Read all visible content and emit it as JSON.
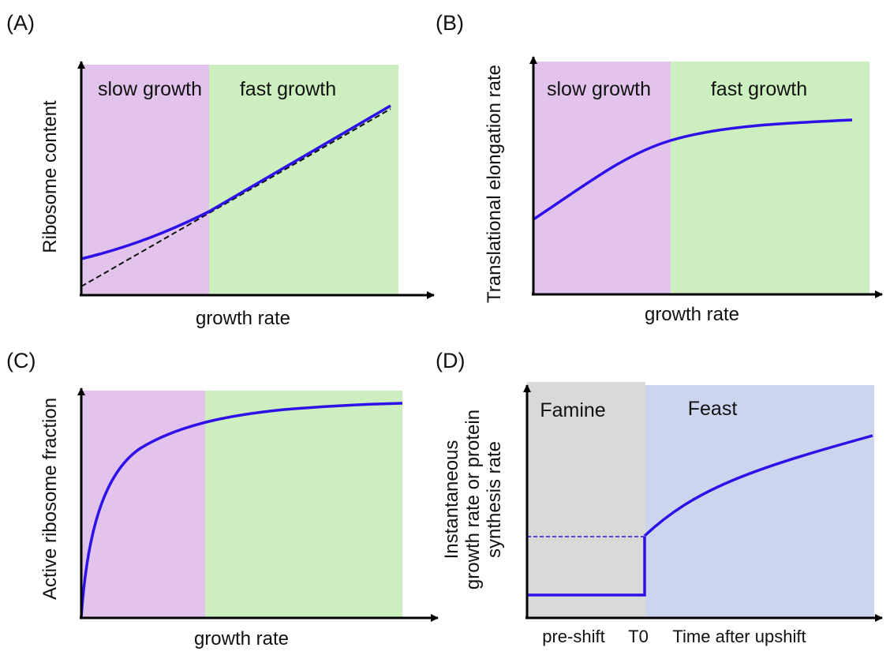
{
  "panels": {
    "a": {
      "label": "(A)",
      "ylabel": "Ribosome content",
      "xlabel": "growth rate",
      "regions": [
        "slow growth",
        "fast growth"
      ]
    },
    "b": {
      "label": "(B)",
      "ylabel": "Translational elongation rate",
      "xlabel": "growth rate",
      "regions": [
        "slow growth",
        "fast growth"
      ]
    },
    "c": {
      "label": "(C)",
      "ylabel": "Active ribosome fraction",
      "xlabel": "growth rate"
    },
    "d": {
      "label": "(D)",
      "ylabel_lines": [
        "Instantaneous",
        "growth rate or protein",
        "synthesis rate"
      ],
      "regions": [
        "Famine",
        "Feast"
      ],
      "xticks": [
        "pre-shift",
        "T0",
        "Time after upshift"
      ]
    }
  },
  "colors": {
    "slow_region": "#e1c3ec",
    "fast_region": "#cdeebe",
    "famine_region": "#d9d9d9",
    "feast_region": "#cbd6ee",
    "curve": "#2e10e8",
    "dashed": "#111111",
    "axis": "#000000"
  }
}
